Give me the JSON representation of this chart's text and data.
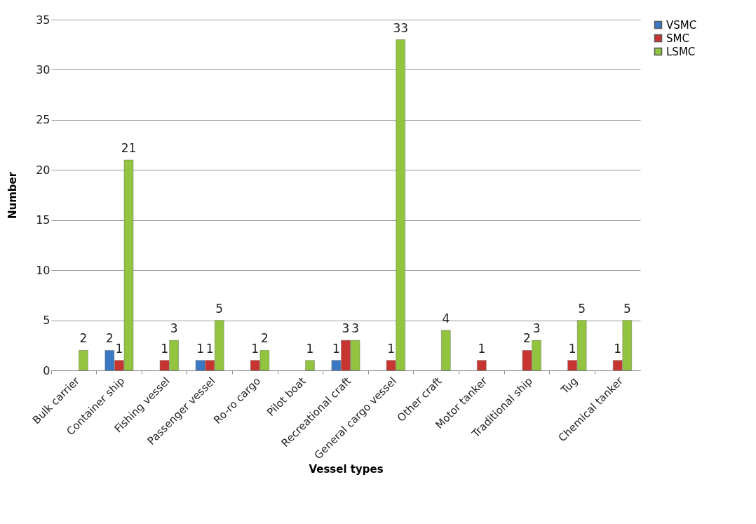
{
  "chart_data": {
    "type": "bar",
    "xlabel": "Vessel types",
    "ylabel": "Number",
    "categories": [
      "Bulk carrier",
      "Container ship",
      "Fishing vessel",
      "Passenger vessel",
      "Ro-ro cargo",
      "Pilot boat",
      "Recreational craft",
      "General cargo vessel",
      "Other craft",
      "Motor tanker",
      "Traditional ship",
      "Tug",
      "Chemical tanker"
    ],
    "series": [
      {
        "name": "VSMC",
        "color": "#3b78c4",
        "values": [
          null,
          2,
          null,
          1,
          null,
          null,
          1,
          null,
          null,
          null,
          null,
          null,
          null
        ]
      },
      {
        "name": "SMC",
        "color": "#c83530",
        "values": [
          null,
          1,
          1,
          1,
          1,
          null,
          3,
          1,
          null,
          1,
          2,
          1,
          1
        ]
      },
      {
        "name": "LSMC",
        "color": "#93c43f",
        "values": [
          2,
          21,
          3,
          5,
          2,
          1,
          3,
          33,
          4,
          null,
          3,
          5,
          5
        ]
      }
    ],
    "ylim": [
      0,
      35
    ],
    "yticks": [
      0,
      5,
      10,
      15,
      20,
      25,
      30,
      35
    ],
    "grid": "y",
    "legend": "right",
    "data_labels": true
  }
}
